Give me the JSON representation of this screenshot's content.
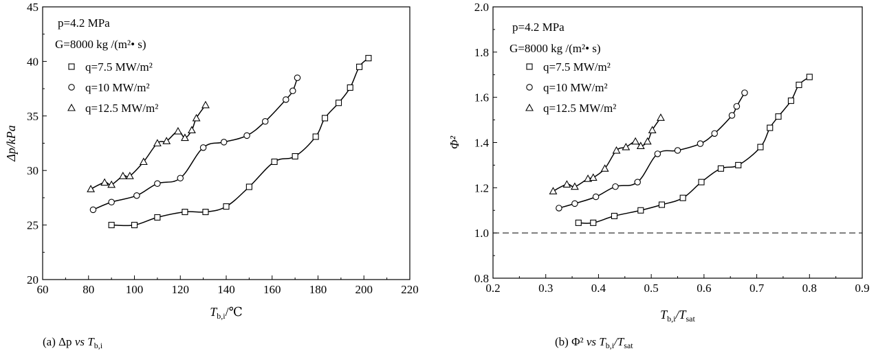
{
  "chart_data": [
    {
      "type": "line",
      "panel": "a",
      "xlabel_main": "T",
      "xlabel_sub": "b,i",
      "xlabel_suffix": "/℃",
      "ylabel": "Δp/kPa",
      "xlim": [
        60,
        220
      ],
      "ylim": [
        20,
        45
      ],
      "xticks": [
        60,
        80,
        100,
        120,
        140,
        160,
        180,
        200,
        220
      ],
      "yticks": [
        20,
        25,
        30,
        35,
        40,
        45
      ],
      "xtick_labels": [
        "60",
        "80",
        "100",
        "120",
        "140",
        "160",
        "180",
        "200",
        "220"
      ],
      "ytick_labels": [
        "20",
        "25",
        "30",
        "35",
        "40",
        "45"
      ],
      "notes": {
        "pressure": "p=4.2 MPa",
        "mass_flux": "G=8000 kg /(m²• s)"
      },
      "series": [
        {
          "name": "q=7.5 MW/m²",
          "marker": "square",
          "x": [
            90,
            100,
            110,
            122,
            131,
            140,
            150,
            161,
            170,
            179,
            183,
            189,
            194,
            198,
            202
          ],
          "y": [
            25.0,
            25.0,
            25.7,
            26.2,
            26.2,
            26.7,
            28.5,
            30.8,
            31.3,
            33.1,
            34.8,
            36.2,
            37.6,
            39.5,
            40.3
          ]
        },
        {
          "name": "q=10 MW/m²",
          "marker": "circle",
          "x": [
            82,
            90,
            101,
            110,
            120,
            130,
            139,
            149,
            157,
            166,
            169,
            171
          ],
          "y": [
            26.4,
            27.1,
            27.7,
            28.8,
            29.3,
            32.1,
            32.6,
            33.2,
            34.5,
            36.5,
            37.3,
            38.5
          ]
        },
        {
          "name": "q=12.5 MW/m²",
          "marker": "triangle",
          "x": [
            81,
            87,
            90,
            95,
            98,
            104,
            110,
            114,
            119,
            122,
            125,
            127,
            131
          ],
          "y": [
            28.3,
            28.9,
            28.7,
            29.5,
            29.5,
            30.8,
            32.5,
            32.7,
            33.6,
            33.0,
            33.7,
            34.8,
            36.0
          ]
        }
      ],
      "caption": {
        "label": "(a)",
        "text_before": "Δp",
        "vs": "vs",
        "var": "T",
        "sub": "b,i"
      }
    },
    {
      "type": "line",
      "panel": "b",
      "xlabel_main": "T",
      "xlabel_sub": "b,i",
      "xlabel_mid": "/T",
      "xlabel_sub2": "sat",
      "ylabel": "Φ²",
      "xlim": [
        0.2,
        0.9
      ],
      "ylim": [
        0.8,
        2.0
      ],
      "xticks": [
        0.2,
        0.3,
        0.4,
        0.5,
        0.6,
        0.7,
        0.8,
        0.9
      ],
      "yticks": [
        0.8,
        1.0,
        1.2,
        1.4,
        1.6,
        1.8,
        2.0
      ],
      "xtick_labels": [
        "0.2",
        "0.3",
        "0.4",
        "0.5",
        "0.6",
        "0.7",
        "0.8",
        "0.9"
      ],
      "ytick_labels": [
        "0.8",
        "1.0",
        "1.2",
        "1.4",
        "1.6",
        "1.8",
        "2.0"
      ],
      "reference_line_y": 1.0,
      "notes": {
        "pressure": "p=4.2 MPa",
        "mass_flux": "G=8000 kg /(m²• s)"
      },
      "series": [
        {
          "name": "q=7.5 MW/m²",
          "marker": "square",
          "x": [
            0.362,
            0.39,
            0.43,
            0.48,
            0.52,
            0.56,
            0.595,
            0.632,
            0.665,
            0.707,
            0.725,
            0.741,
            0.765,
            0.78,
            0.8
          ],
          "y": [
            1.045,
            1.045,
            1.075,
            1.1,
            1.125,
            1.155,
            1.225,
            1.285,
            1.3,
            1.38,
            1.465,
            1.515,
            1.585,
            1.655,
            1.69
          ]
        },
        {
          "name": "q=10 MW/m²",
          "marker": "circle",
          "x": [
            0.325,
            0.355,
            0.395,
            0.432,
            0.474,
            0.512,
            0.55,
            0.593,
            0.62,
            0.653,
            0.662,
            0.677
          ],
          "y": [
            1.11,
            1.13,
            1.16,
            1.205,
            1.225,
            1.35,
            1.365,
            1.395,
            1.44,
            1.52,
            1.56,
            1.62
          ]
        },
        {
          "name": "q=12.5 MW/m²",
          "marker": "triangle",
          "x": [
            0.314,
            0.34,
            0.355,
            0.38,
            0.39,
            0.412,
            0.434,
            0.452,
            0.47,
            0.48,
            0.493,
            0.502,
            0.518
          ],
          "y": [
            1.185,
            1.215,
            1.205,
            1.24,
            1.245,
            1.285,
            1.365,
            1.38,
            1.405,
            1.385,
            1.405,
            1.455,
            1.51
          ]
        }
      ],
      "caption": {
        "label": "(b)",
        "text_before": "Φ²",
        "vs": "vs",
        "var": "T",
        "sub": "b,i",
        "mid": "/T",
        "sub2": "sat"
      }
    }
  ]
}
